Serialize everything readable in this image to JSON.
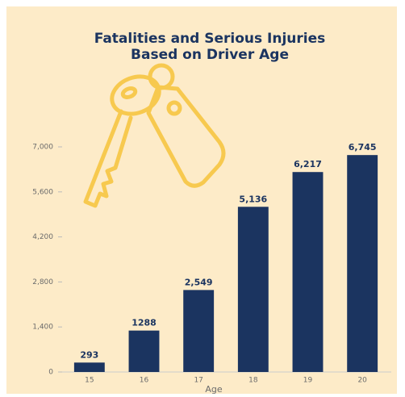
{
  "chart_data": {
    "type": "bar",
    "title": [
      "Fatalities and Serious Injuries",
      "Based on Driver Age"
    ],
    "x_label": "Age",
    "categories": [
      "15",
      "16",
      "17",
      "18",
      "19",
      "20"
    ],
    "values": [
      293,
      1288,
      2549,
      5136,
      6217,
      6745
    ],
    "value_labels": [
      "293",
      "1288",
      "2,549",
      "5,136",
      "6,217",
      "6,745"
    ],
    "color": "#1b3460",
    "ylim": [
      0,
      7000
    ],
    "yticks": [
      0,
      {
        "value": 1400,
        "label": "1,400"
      },
      {
        "value": 2800,
        "label": "2,800"
      },
      {
        "value": 4200,
        "label": "4,200"
      },
      {
        "value": 5600,
        "label": "5,600"
      },
      {
        "value": 7000,
        "label": "7,000"
      }
    ],
    "grid": false
  }
}
